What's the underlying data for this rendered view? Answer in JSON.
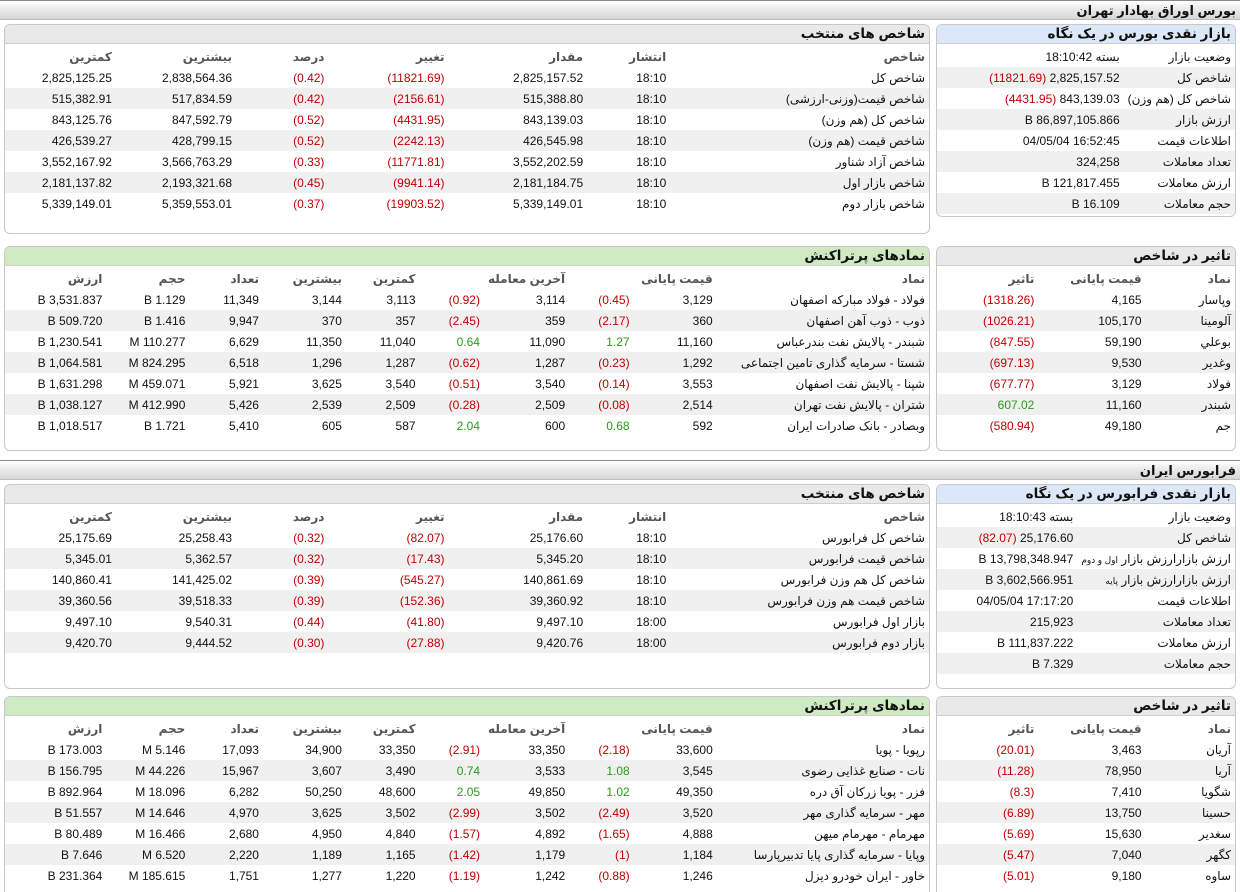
{
  "tehran": {
    "title": "بورس اوراق بهادار تهران",
    "snapshot": {
      "title": "بازار نقدی بورس در یک نگاه",
      "rows": [
        {
          "k": "وضعیت بازار",
          "v": "بسته 18:10:42",
          "ch": ""
        },
        {
          "k": "شاخص کل",
          "v": "2,825,157.52",
          "ch": "(11821.69)"
        },
        {
          "k": "شاخص کل (هم وزن)",
          "v": "843,139.03",
          "ch": "(4431.95)"
        },
        {
          "k": "ارزش بازار",
          "v": "86,897,105.866 B",
          "ch": ""
        },
        {
          "k": "اطلاعات قیمت",
          "v": "16:52:45 04/05/04",
          "ch": ""
        },
        {
          "k": "تعداد معاملات",
          "v": "324,258",
          "ch": ""
        },
        {
          "k": "ارزش معاملات",
          "v": "121,817.455 B",
          "ch": ""
        },
        {
          "k": "حجم معاملات",
          "v": "16.109 B",
          "ch": ""
        }
      ]
    },
    "indices": {
      "title": "شاخص های منتخب",
      "headers": [
        "شاخص",
        "انتشار",
        "مقدار",
        "تغییر",
        "درصد",
        "بیشترین",
        "کمترین"
      ],
      "rows": [
        [
          "شاخص کل",
          "18:10",
          "2,825,157.52",
          "(11821.69)",
          "(0.42)",
          "2,838,564.36",
          "2,825,125.25"
        ],
        [
          "شاخص قیمت(وزنی-ارزشی)",
          "18:10",
          "515,388.80",
          "(2156.61)",
          "(0.42)",
          "517,834.59",
          "515,382.91"
        ],
        [
          "شاخص کل (هم وزن)",
          "18:10",
          "843,139.03",
          "(4431.95)",
          "(0.52)",
          "847,592.79",
          "843,125.76"
        ],
        [
          "شاخص قیمت (هم وزن)",
          "18:10",
          "426,545.98",
          "(2242.13)",
          "(0.52)",
          "428,799.15",
          "426,539.27"
        ],
        [
          "شاخص آزاد شناور",
          "18:10",
          "3,552,202.59",
          "(11771.81)",
          "(0.33)",
          "3,566,763.29",
          "3,552,167.92"
        ],
        [
          "شاخص بازار اول",
          "18:10",
          "2,181,184.75",
          "(9941.14)",
          "(0.45)",
          "2,193,321.68",
          "2,181,137.82"
        ],
        [
          "شاخص بازار دوم",
          "18:10",
          "5,339,149.01",
          "(19903.52)",
          "(0.37)",
          "5,359,553.01",
          "5,339,149.01"
        ]
      ]
    },
    "impact": {
      "title": "تاثیر در شاخص",
      "headers": [
        "نماد",
        "قیمت پایانی",
        "تاثیر"
      ],
      "rows": [
        [
          "وپاسار",
          "4,165",
          "(1318.26)"
        ],
        [
          "آلومینا",
          "105,170",
          "(1026.21)"
        ],
        [
          "بوعلي",
          "59,190",
          "(847.55)"
        ],
        [
          "وغدیر",
          "9,530",
          "(697.13)"
        ],
        [
          "فولاد",
          "3,129",
          "(677.77)"
        ],
        [
          "شبندر",
          "11,160",
          "607.02"
        ],
        [
          "جم",
          "49,180",
          "(580.94)"
        ]
      ]
    },
    "active": {
      "title": "نمادهای پرتراکنش",
      "headers": [
        "نماد",
        "قیمت پایانی",
        "",
        "آخرین معامله",
        "",
        "کمترین",
        "بیشترین",
        "تعداد",
        "حجم",
        "ارزش"
      ],
      "rows": [
        [
          "فولاد - فولاد مبارکه اصفهان",
          "3,129",
          "(0.45)",
          "3,114",
          "(0.92)",
          "3,113",
          "3,144",
          "11,349",
          "1.129 B",
          "3,531.837 B"
        ],
        [
          "ذوب - ذوب آهن اصفهان",
          "360",
          "(2.17)",
          "359",
          "(2.45)",
          "357",
          "370",
          "9,947",
          "1.416 B",
          "509.720 B"
        ],
        [
          "شبندر - پالایش نفت بندرعباس",
          "11,160",
          "1.27",
          "11,090",
          "0.64",
          "11,040",
          "11,350",
          "6,629",
          "110.277 M",
          "1,230.541 B"
        ],
        [
          "شستا - سرمایه گذاری تامین اجتماعی",
          "1,292",
          "(0.23)",
          "1,287",
          "(0.62)",
          "1,287",
          "1,296",
          "6,518",
          "824.295 M",
          "1,064.581 B"
        ],
        [
          "شپنا - پالایش نفت اصفهان",
          "3,553",
          "(0.14)",
          "3,540",
          "(0.51)",
          "3,540",
          "3,625",
          "5,921",
          "459.071 M",
          "1,631.298 B"
        ],
        [
          "شتران - پالایش نفت تهران",
          "2,514",
          "(0.08)",
          "2,509",
          "(0.28)",
          "2,509",
          "2,539",
          "5,426",
          "412.990 M",
          "1,038.127 B"
        ],
        [
          "وبصادر - بانک صادرات ایران",
          "592",
          "0.68",
          "600",
          "2.04",
          "587",
          "605",
          "5,410",
          "1.721 B",
          "1,018.517 B"
        ]
      ]
    }
  },
  "farabourse": {
    "title": "فرابورس ایران",
    "snapshot": {
      "title": "بازار نقدی فرابورس در یک نگاه",
      "rows": [
        {
          "k": "وضعیت بازار",
          "v": "بسته 18:10:43",
          "ch": ""
        },
        {
          "k": "شاخص کل",
          "v": "25,176.60",
          "ch": "(82.07)"
        },
        {
          "k": "ارزش بازار",
          "k2": "اول و دوم",
          "v": "13,798,348.947 B",
          "ch": ""
        },
        {
          "k": "ارزش بازار",
          "k2": "پایه",
          "v": "3,602,566.951 B",
          "ch": ""
        },
        {
          "k": "اطلاعات قیمت",
          "v": "17:17:20 04/05/04",
          "ch": ""
        },
        {
          "k": "تعداد معاملات",
          "v": "215,923",
          "ch": ""
        },
        {
          "k": "ارزش معاملات",
          "v": "111,837.222 B",
          "ch": ""
        },
        {
          "k": "حجم معاملات",
          "v": "7.329 B",
          "ch": ""
        }
      ]
    },
    "indices": {
      "title": "شاخص های منتخب",
      "headers": [
        "شاخص",
        "انتشار",
        "مقدار",
        "تغییر",
        "درصد",
        "بیشترین",
        "کمترین"
      ],
      "rows": [
        [
          "شاخص کل فرابورس",
          "18:10",
          "25,176.60",
          "(82.07)",
          "(0.32)",
          "25,258.43",
          "25,175.69"
        ],
        [
          "شاخص قیمت فرابورس",
          "18:10",
          "5,345.20",
          "(17.43)",
          "(0.32)",
          "5,362.57",
          "5,345.01"
        ],
        [
          "شاخص کل هم وزن فرابورس",
          "18:10",
          "140,861.69",
          "(545.27)",
          "(0.39)",
          "141,425.02",
          "140,860.41"
        ],
        [
          "شاخص قیمت هم وزن فرابورس",
          "18:10",
          "39,360.92",
          "(152.36)",
          "(0.39)",
          "39,518.33",
          "39,360.56"
        ],
        [
          "بازار اول فرابورس",
          "18:00",
          "9,497.10",
          "(41.80)",
          "(0.44)",
          "9,540.31",
          "9,497.10"
        ],
        [
          "بازار دوم فرابورس",
          "18:00",
          "9,420.76",
          "(27.88)",
          "(0.30)",
          "9,444.52",
          "9,420.70"
        ]
      ]
    },
    "impact": {
      "title": "تاثیر در شاخص",
      "headers": [
        "نماد",
        "قیمت پایانی",
        "تاثیر"
      ],
      "rows": [
        [
          "آریان",
          "3,463",
          "(20.01)"
        ],
        [
          "آریا",
          "78,950",
          "(11.28)"
        ],
        [
          "شگویا",
          "7,410",
          "(8.3)"
        ],
        [
          "حسینا",
          "13,750",
          "(6.89)"
        ],
        [
          "سغدیر",
          "15,630",
          "(5.69)"
        ],
        [
          "کگهر",
          "7,040",
          "(5.47)"
        ],
        [
          "ساوه",
          "9,180",
          "(5.01)"
        ]
      ]
    },
    "active": {
      "title": "نمادهای پرتراکنش",
      "headers": [
        "نماد",
        "قیمت پایانی",
        "",
        "آخرین معامله",
        "",
        "کمترین",
        "بیشترین",
        "تعداد",
        "حجم",
        "ارزش"
      ],
      "rows": [
        [
          "رپویا - پویا",
          "33,600",
          "(2.18)",
          "33,350",
          "(2.91)",
          "33,350",
          "34,900",
          "17,093",
          "5.146 M",
          "173.003 B"
        ],
        [
          "نات - صنایع غذایی رضوی",
          "3,545",
          "1.08",
          "3,533",
          "0.74",
          "3,490",
          "3,607",
          "15,967",
          "44.226 M",
          "156.795 B"
        ],
        [
          "فزر - پویا زرکان آق دره",
          "49,350",
          "1.02",
          "49,850",
          "2.05",
          "48,600",
          "50,250",
          "6,282",
          "18.096 M",
          "892.964 B"
        ],
        [
          "مهر - سرمایه گذاری مهر",
          "3,520",
          "(2.49)",
          "3,502",
          "(2.99)",
          "3,502",
          "3,625",
          "4,970",
          "14.646 M",
          "51.557 B"
        ],
        [
          "مهرمام - مهرمام میهن",
          "4,888",
          "(1.65)",
          "4,892",
          "(1.57)",
          "4,840",
          "4,950",
          "2,680",
          "16.466 M",
          "80.489 B"
        ],
        [
          "وپایا - سرمایه گذاری پایا تدبیرپارسا",
          "1,184",
          "(1)",
          "1,179",
          "(1.42)",
          "1,165",
          "1,189",
          "2,220",
          "6.520 M",
          "7.646 B"
        ],
        [
          "خاور - ایران خودرو دیزل",
          "1,246",
          "(0.88)",
          "1,242",
          "(1.19)",
          "1,220",
          "1,277",
          "1,751",
          "185.615 M",
          "231.364 B"
        ]
      ]
    }
  }
}
